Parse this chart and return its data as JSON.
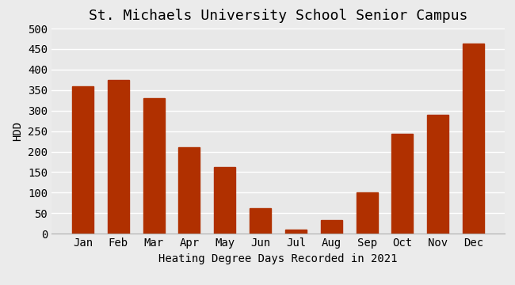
{
  "title": "St. Michaels University School Senior Campus",
  "xlabel": "Heating Degree Days Recorded in 2021",
  "ylabel": "HDD",
  "categories": [
    "Jan",
    "Feb",
    "Mar",
    "Apr",
    "May",
    "Jun",
    "Jul",
    "Aug",
    "Sep",
    "Oct",
    "Nov",
    "Dec"
  ],
  "values": [
    360,
    375,
    330,
    210,
    162,
    63,
    10,
    34,
    101,
    244,
    290,
    464
  ],
  "bar_color": "#b03000",
  "background_color": "#ebebeb",
  "plot_bg_color": "#e8e8e8",
  "ylim": [
    0,
    500
  ],
  "yticks": [
    0,
    50,
    100,
    150,
    200,
    250,
    300,
    350,
    400,
    450,
    500
  ],
  "title_fontsize": 13,
  "label_fontsize": 10,
  "tick_fontsize": 10
}
